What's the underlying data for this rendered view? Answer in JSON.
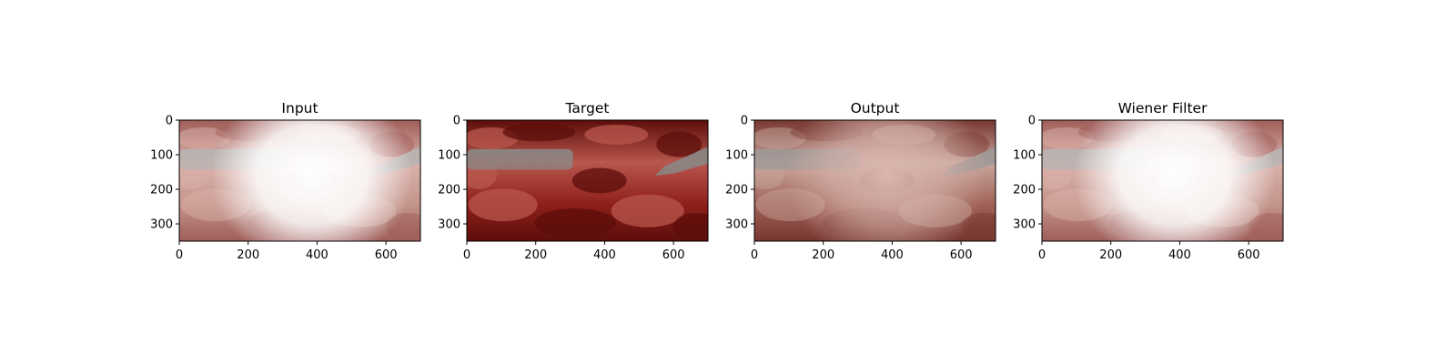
{
  "figure": {
    "panels": [
      {
        "id": "input",
        "title": "Input",
        "description_icon": "surgical-scene-image",
        "glare": "strong",
        "tones": {
          "bg": "#b67d71",
          "bg2": "#d4a29a",
          "tissue": "#8a3a35",
          "tool": "#a9a3a1",
          "glare": "#ffffff"
        }
      },
      {
        "id": "target",
        "title": "Target",
        "description_icon": "surgical-scene-image",
        "glare": "none",
        "tones": {
          "bg": "#8e1f1a",
          "bg2": "#b8574d",
          "tissue": "#5c0e0b",
          "tool": "#8b8684",
          "glare": "#ffffff"
        }
      },
      {
        "id": "output",
        "title": "Output",
        "description_icon": "surgical-scene-image",
        "glare": "medium",
        "tones": {
          "bg": "#9b5a4f",
          "bg2": "#c8a69c",
          "tissue": "#6e2c26",
          "tool": "#9a9694",
          "glare": "#d9b7ae"
        }
      },
      {
        "id": "wiener",
        "title": "Wiener Filter",
        "description_icon": "surgical-scene-image",
        "glare": "strong",
        "tones": {
          "bg": "#b67d71",
          "bg2": "#d4a29a",
          "tissue": "#8a3a35",
          "tool": "#a9a3a1",
          "glare": "#ffffff"
        }
      }
    ],
    "x_ticks": [
      "0",
      "200",
      "400",
      "600"
    ],
    "y_ticks": [
      "0",
      "100",
      "200",
      "300"
    ],
    "x_tick_values": [
      0,
      200,
      400,
      600
    ],
    "y_tick_values": [
      0,
      100,
      200,
      300
    ],
    "x_range": [
      0,
      700
    ],
    "y_range": [
      0,
      350
    ]
  }
}
